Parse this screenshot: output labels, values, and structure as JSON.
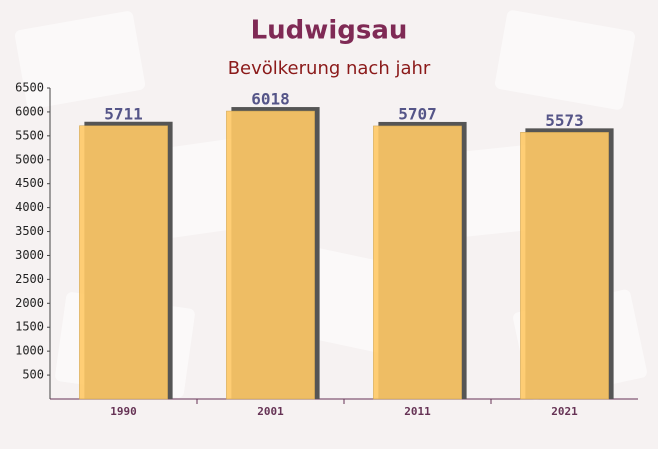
{
  "chart_data": {
    "type": "bar",
    "title": "Ludwigsau",
    "subtitle": "Bevölkerung nach jahr",
    "categories": [
      "1990",
      "2001",
      "2011",
      "2021"
    ],
    "values": [
      5711,
      6018,
      5707,
      5573
    ],
    "color": "#ffc966",
    "ylim": [
      0,
      6500
    ],
    "yticks": [
      500,
      1000,
      1500,
      2000,
      2500,
      3000,
      3500,
      4000,
      4500,
      5000,
      5500,
      6000,
      6500
    ]
  }
}
